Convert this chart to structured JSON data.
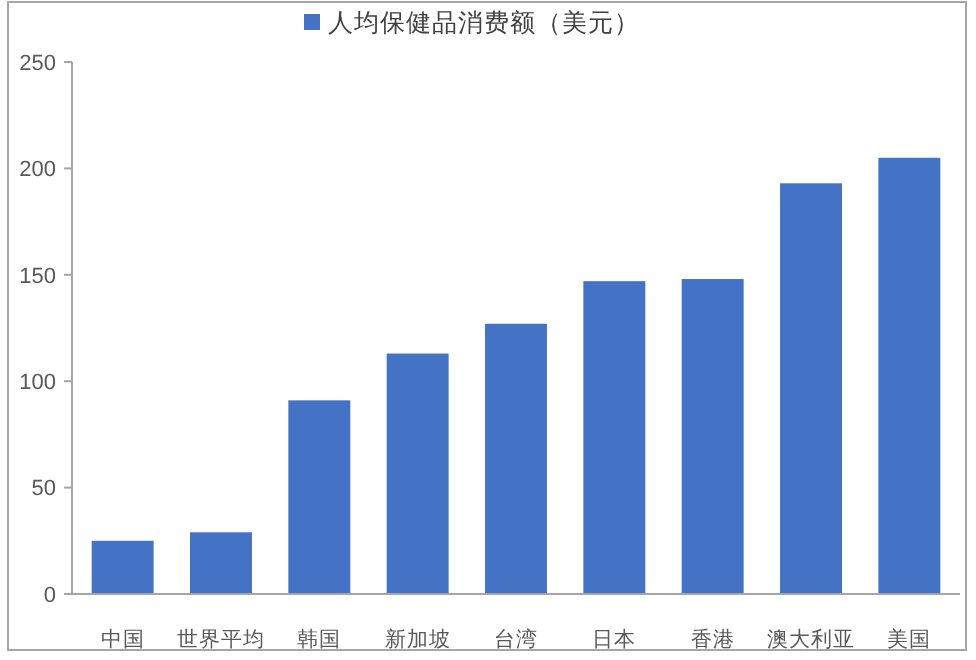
{
  "chart_data": {
    "type": "bar",
    "categories": [
      "中国",
      "世界平均",
      "韩国",
      "新加坡",
      "台湾",
      "日本",
      "香港",
      "澳大利亚",
      "美国"
    ],
    "series": [
      {
        "name": "人均保健品消费额（美元）",
        "color": "#4472c4",
        "values": [
          25,
          29,
          91,
          113,
          127,
          147,
          148,
          193,
          205
        ]
      }
    ],
    "ylim": [
      0,
      250
    ],
    "yticks": [
      0,
      50,
      100,
      150,
      200,
      250
    ],
    "grid": false,
    "legend": "top"
  }
}
